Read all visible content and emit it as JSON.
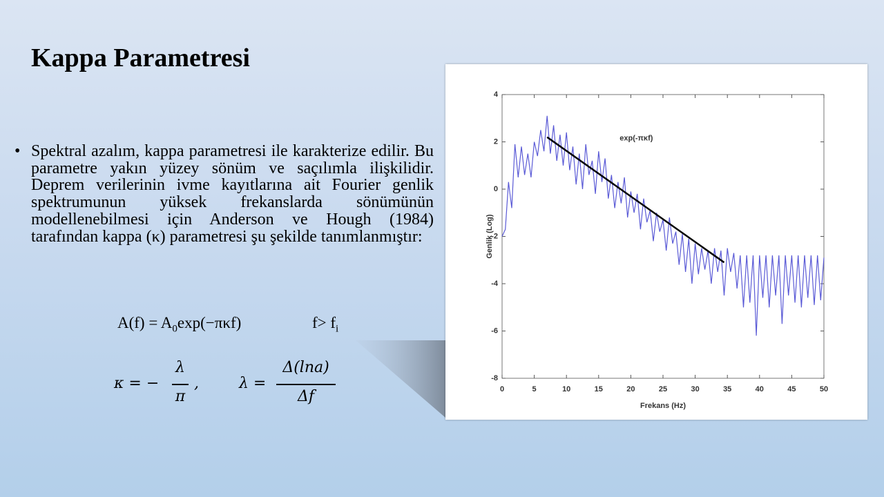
{
  "header": {
    "title": "Kappa Parametresi"
  },
  "body": {
    "bullet": "Spektral azalım, kappa parametresi ile karakterize edilir. Bu parametre yakın yüzey sönüm ve saçılımla ilişkilidir. Deprem verilerinin ivme kayıtlarına ait Fourier genlik spektrumunun yüksek frekanslarda sönümünün modellenebilmesi için Anderson ve Hough (1984) tarafından kappa (κ) parametresi şu şekilde tanımlanmıştır:"
  },
  "formulas": {
    "a_left": "A(f) = A",
    "a_sub": "0",
    "a_right": "exp(−πκf)",
    "cond": "f> f",
    "cond_sub": "i",
    "kappa_lhs": "κ = −",
    "kappa_num": "λ",
    "kappa_den": "π",
    "comma": ",",
    "lambda_lhs": "λ =",
    "lambda_num": "Δ(lna)",
    "lambda_den": "Δf"
  },
  "chart_data": {
    "type": "line",
    "xlabel": "Frekans (Hz)",
    "ylabel": "Genlik (Log)",
    "xlim": [
      0,
      50
    ],
    "ylim": [
      -8,
      4
    ],
    "xticks": [
      0,
      5,
      10,
      15,
      20,
      25,
      30,
      35,
      40,
      45,
      50
    ],
    "yticks": [
      -8,
      -6,
      -4,
      -2,
      0,
      2,
      4
    ],
    "series": [
      {
        "color": "#5a5ad6",
        "x": [
          0,
          0.5,
          1,
          1.5,
          2,
          2.5,
          3,
          3.5,
          4,
          4.5,
          5,
          5.5,
          6,
          6.5,
          7,
          7.5,
          8,
          8.5,
          9,
          9.5,
          10,
          10.5,
          11,
          11.5,
          12,
          12.5,
          13,
          13.5,
          14,
          14.5,
          15,
          15.5,
          16,
          16.5,
          17,
          17.5,
          18,
          18.5,
          19,
          19.5,
          20,
          20.5,
          21,
          21.5,
          22,
          22.5,
          23,
          23.5,
          24,
          24.5,
          25,
          25.5,
          26,
          26.5,
          27,
          27.5,
          28,
          28.5,
          29,
          29.5,
          30,
          30.5,
          31,
          31.5,
          32,
          32.5,
          33,
          33.5,
          34,
          34.5,
          35,
          35.5,
          36,
          36.5,
          37,
          37.5,
          38,
          38.5,
          39,
          39.5,
          40,
          40.5,
          41,
          41.5,
          42,
          42.5,
          43,
          43.5,
          44,
          44.5,
          45,
          45.5,
          46,
          46.5,
          47,
          47.5,
          48,
          48.5,
          49,
          49.5,
          50
        ],
        "values": [
          -2,
          -1.7,
          0.3,
          -0.8,
          1.9,
          0.5,
          1.8,
          0.6,
          1.5,
          0.5,
          2.0,
          1.4,
          2.5,
          1.6,
          3.1,
          1.5,
          2.7,
          1.2,
          2.3,
          1.0,
          2.4,
          0.8,
          1.8,
          0.2,
          1.5,
          0.0,
          1.9,
          0.6,
          1.2,
          -0.2,
          1.6,
          0.3,
          1.3,
          -0.4,
          0.6,
          -0.8,
          0.3,
          -0.6,
          0.5,
          -1.2,
          -0.1,
          -1.0,
          -0.2,
          -1.7,
          -0.4,
          -1.4,
          -0.9,
          -2.2,
          -1.0,
          -1.8,
          -1.3,
          -2.6,
          -1.2,
          -2.3,
          -1.8,
          -3.2,
          -1.9,
          -3.5,
          -2.1,
          -4.0,
          -2.3,
          -3.6,
          -2.5,
          -3.4,
          -2.6,
          -4.0,
          -2.5,
          -3.5,
          -2.6,
          -4.5,
          -2.5,
          -3.5,
          -2.7,
          -4.2,
          -2.8,
          -5.0,
          -2.8,
          -4.8,
          -2.8,
          -6.2,
          -2.8,
          -4.6,
          -2.8,
          -5.0,
          -2.8,
          -4.5,
          -2.8,
          -5.7,
          -2.8,
          -4.5,
          -2.8,
          -4.8,
          -2.8,
          -5.0,
          -2.8,
          -4.6,
          -2.8,
          -4.9,
          -2.8,
          -4.7,
          -2.9
        ]
      },
      {
        "name": "exp(-πκf)",
        "color": "#000000",
        "x": [
          7,
          34.5
        ],
        "values": [
          2.2,
          -3.1
        ]
      }
    ]
  }
}
